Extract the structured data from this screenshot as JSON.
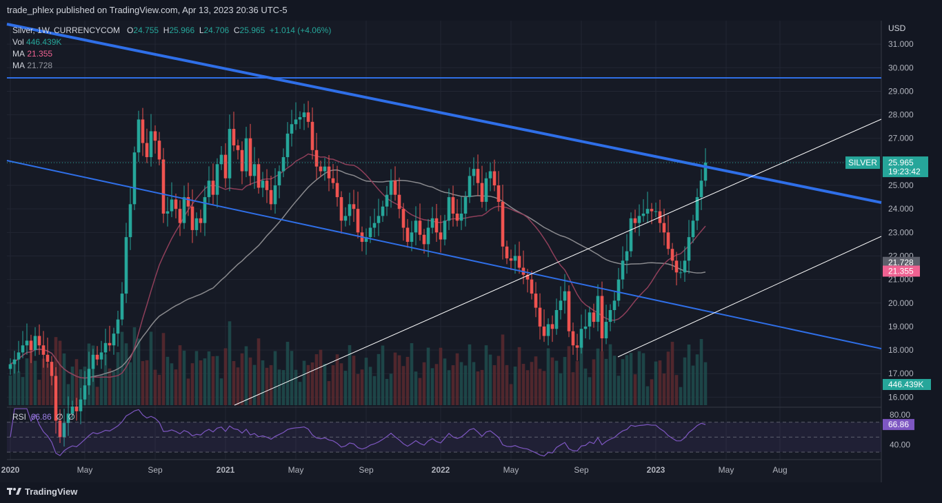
{
  "header": {
    "publisher_line": "trade_phlex published on TradingView.com, Apr 13, 2023 20:36 UTC-5"
  },
  "legend": {
    "symbol": "Silver, 1W, CURRENCYCOM",
    "o_label": "O",
    "o": "24.755",
    "h_label": "H",
    "h": "25.966",
    "l_label": "L",
    "l": "24.706",
    "c_label": "C",
    "c": "25.965",
    "change": "+1.014 (+4.06%)",
    "vol_label": "Vol",
    "vol": "446.439K",
    "ma1_label": "MA",
    "ma1": "21.355",
    "ma2_label": "MA",
    "ma2": "21.728"
  },
  "rsi_legend": {
    "label": "RSI",
    "value": "66.86",
    "extra1": "∅",
    "extra2": "∅"
  },
  "footer": {
    "brand": "TradingView"
  },
  "colors": {
    "up": "#26a69a",
    "down": "#ef5350",
    "trend": "#2f6fe8",
    "channel": "#ffffff",
    "ma_slow": "#8a8a8e",
    "ma_fast": "#8f3f5a",
    "rsi": "#7e57c2"
  },
  "chart_data": {
    "type": "candlestick",
    "title": "Silver, 1W, CURRENCYCOM",
    "currency": "USD",
    "y_ticks": [
      "16.000",
      "17.000",
      "18.000",
      "19.000",
      "20.000",
      "21.000",
      "22.000",
      "23.000",
      "24.000",
      "25.000",
      "26.000",
      "27.000",
      "28.000",
      "29.000",
      "30.000",
      "31.000"
    ],
    "ylim": [
      15.6,
      32.0
    ],
    "x_ticks": [
      "2020",
      "May",
      "Sep",
      "2021",
      "May",
      "Sep",
      "2022",
      "May",
      "Sep",
      "2023",
      "May",
      "Aug"
    ],
    "x_tick_weeks": [
      0,
      18,
      35,
      52,
      69,
      86,
      104,
      121,
      138,
      156,
      173,
      186
    ],
    "last_price_label": "SILVER",
    "last_price": "25.965",
    "countdown": "19:23:42",
    "ma_slow_value": "21.728",
    "ma_fast_value": "21.355",
    "volume_value": "446.439K",
    "closes": [
      17.4,
      17.6,
      17.9,
      18.2,
      18.4,
      18.0,
      18.6,
      18.2,
      17.8,
      17.5,
      16.9,
      15.0,
      14.3,
      14.9,
      15.3,
      15.6,
      15.4,
      15.9,
      16.5,
      17.2,
      17.8,
      17.6,
      17.9,
      18.3,
      18.2,
      18.7,
      19.3,
      20.4,
      22.8,
      24.2,
      26.4,
      27.8,
      26.8,
      26.2,
      27.3,
      26.9,
      26.1,
      23.8,
      23.9,
      24.4,
      24.0,
      23.4,
      24.5,
      24.1,
      23.1,
      23.6,
      23.4,
      24.5,
      25.2,
      24.6,
      25.9,
      26.3,
      25.3,
      27.4,
      26.7,
      26.5,
      25.6,
      27.0,
      25.4,
      25.9,
      24.9,
      25.2,
      24.8,
      24.2,
      25.0,
      25.6,
      26.2,
      27.2,
      27.6,
      27.8,
      27.9,
      28.1,
      27.7,
      26.5,
      25.8,
      25.6,
      25.8,
      25.3,
      25.1,
      24.5,
      23.5,
      23.7,
      24.2,
      24.0,
      23.0,
      22.6,
      22.8,
      23.2,
      23.4,
      23.7,
      24.1,
      24.6,
      25.2,
      24.6,
      24.0,
      23.2,
      22.6,
      23.0,
      23.5,
      22.9,
      22.5,
      23.2,
      23.6,
      23.0,
      22.7,
      23.5,
      24.5,
      23.8,
      23.5,
      23.8,
      24.5,
      25.4,
      25.7,
      25.1,
      24.3,
      25.3,
      25.6,
      25.0,
      24.3,
      22.4,
      21.9,
      21.8,
      22.0,
      21.5,
      21.2,
      21.0,
      20.4,
      19.8,
      19.0,
      18.6,
      19.1,
      18.9,
      19.7,
      20.1,
      20.5,
      18.8,
      18.2,
      18.1,
      18.9,
      19.0,
      19.6,
      19.2,
      20.3,
      18.5,
      19.2,
      19.7,
      20.1,
      21.0,
      21.8,
      22.2,
      23.6,
      23.4,
      23.7,
      23.8,
      24.0,
      23.9,
      23.9,
      23.4,
      23.0,
      22.3,
      21.8,
      21.3,
      21.3,
      21.8,
      22.8,
      23.5,
      24.5,
      25.2,
      25.97
    ]
  }
}
